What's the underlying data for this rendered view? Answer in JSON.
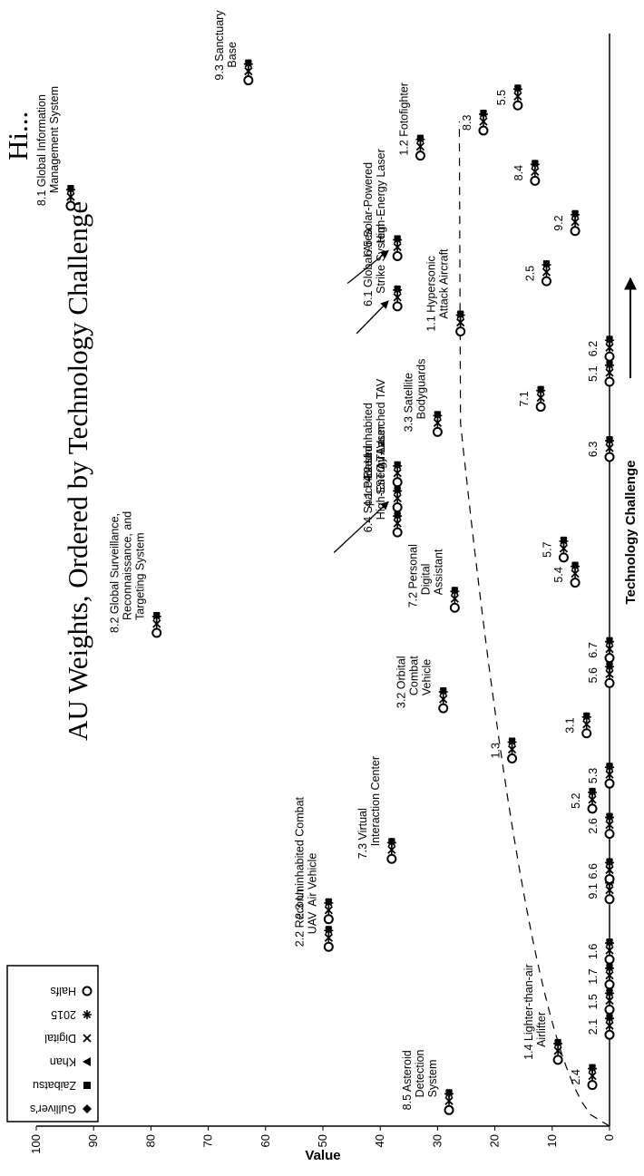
{
  "chart_data": {
    "type": "scatter",
    "title": "AU Weights, Ordered by Technology Challenge",
    "title_top_fragment": "Hi...",
    "ylabel": "Value",
    "xlabel": "Technology Challenge",
    "ylim": [
      0,
      100
    ],
    "y_ticks": [
      "100",
      "90",
      "80",
      "70",
      "60",
      "50",
      "40",
      "30",
      "20",
      "10",
      "0"
    ],
    "legend_position": "top-left",
    "legend": [
      {
        "name": "Gulliver's",
        "marker": "diamond"
      },
      {
        "name": "Zaibatsu",
        "marker": "square"
      },
      {
        "name": "Khan",
        "marker": "triangle"
      },
      {
        "name": "Digital",
        "marker": "x"
      },
      {
        "name": "2015",
        "marker": "asterisk"
      },
      {
        "name": "Halfs",
        "marker": "circle"
      }
    ],
    "points": [
      {
        "label": "8.5 Asteroid Detection System",
        "x": 1,
        "y": 28,
        "lines": [
          "8.5  Asteroid",
          "Detection",
          "System"
        ]
      },
      {
        "label": "2.4",
        "x": 2,
        "y": 3,
        "lines": [
          "2.4"
        ]
      },
      {
        "label": "1.4 Lighter-than-air Airlifter",
        "x": 3,
        "y": 9,
        "lines": [
          "1.4  Lighter-than-air",
          "Airlifter"
        ]
      },
      {
        "label": "2.1",
        "x": 4,
        "y": 0,
        "lines": [
          "2.1"
        ]
      },
      {
        "label": "1.5",
        "x": 5,
        "y": 0,
        "lines": [
          "1.5"
        ]
      },
      {
        "label": "1.7",
        "x": 6,
        "y": 0,
        "lines": [
          "1.7"
        ]
      },
      {
        "label": "1.6",
        "x": 7,
        "y": 0,
        "lines": [
          "1.6"
        ]
      },
      {
        "label": "2.2 Reconn UAV",
        "x": 7.5,
        "y": 49,
        "lines": [
          "2.2  Reconn",
          "UAV"
        ]
      },
      {
        "label": "2.3 Uninhabited Combat Air Vehicle",
        "x": 8.6,
        "y": 49,
        "lines": [
          "2.3  Uninhabited Combat",
          "Air Vehicle"
        ]
      },
      {
        "label": "9.1",
        "x": 9.4,
        "y": 0,
        "lines": [
          "9.1"
        ]
      },
      {
        "label": "6.6",
        "x": 10.2,
        "y": 0,
        "lines": [
          "6.6"
        ]
      },
      {
        "label": "7.3 Virtual Interaction Center",
        "x": 11,
        "y": 38,
        "lines": [
          "7.3  Virtual",
          "Interaction Center"
        ]
      },
      {
        "label": "2.6",
        "x": 12,
        "y": 0,
        "lines": [
          "2.6"
        ]
      },
      {
        "label": "5.2",
        "x": 13,
        "y": 3,
        "lines": [
          "5.2"
        ]
      },
      {
        "label": "5.3",
        "x": 14,
        "y": 0,
        "lines": [
          "5.3"
        ]
      },
      {
        "label": "1.3",
        "x": 15,
        "y": 17,
        "lines": [
          "1.3"
        ]
      },
      {
        "label": "3.1",
        "x": 16,
        "y": 4,
        "lines": [
          "3.1"
        ]
      },
      {
        "label": "3.2 Orbital Combat Vehicle",
        "x": 17,
        "y": 29,
        "lines": [
          "3.2  Orbital",
          "Combat",
          "Vehicle"
        ]
      },
      {
        "label": "5.6",
        "x": 18,
        "y": 0,
        "lines": [
          "5.6"
        ]
      },
      {
        "label": "6.7",
        "x": 19,
        "y": 0,
        "lines": [
          "6.7"
        ]
      },
      {
        "label": "8.2 Global Surveillance, Reconnaissance, and Targeting System",
        "x": 20,
        "y": 79,
        "lines": [
          "8.2  Global Surveillance,",
          "Reconnaissance, and",
          "Targeting System"
        ]
      },
      {
        "label": "7.2 Personal Digital Assistant",
        "x": 21,
        "y": 27,
        "lines": [
          "7.2  Personal",
          "Digital",
          "Assistant"
        ]
      },
      {
        "label": "5.4",
        "x": 22,
        "y": 6,
        "lines": [
          "5.4"
        ]
      },
      {
        "label": "5.7",
        "x": 23,
        "y": 8,
        "lines": [
          "5.7"
        ]
      },
      {
        "label": "6.4 Space-Based High-Energy Laser",
        "x": 24,
        "y": 37,
        "lines": [
          "6.4  Space-Based",
          "High-Energy Laser"
        ]
      },
      {
        "label": "4.1 Piloted SSTO TAV",
        "x": 25,
        "y": 37,
        "lines": [
          "4.1  Piloted",
          "SSTO TAV"
        ]
      },
      {
        "label": "4.2 Uninhabited Air-Launched TAV",
        "x": 26,
        "y": 37,
        "lines": [
          "4.2  Uninhabited",
          "Air-Launched TAV"
        ]
      },
      {
        "label": "6.3",
        "x": 27,
        "y": 0,
        "lines": [
          "6.3"
        ]
      },
      {
        "label": "3.3 Satellite Bodyguards",
        "x": 28,
        "y": 30,
        "lines": [
          "3.3  Satellite",
          "Bodyguards"
        ]
      },
      {
        "label": "7.1",
        "x": 29,
        "y": 12,
        "lines": [
          "7.1"
        ]
      },
      {
        "label": "5.1",
        "x": 30,
        "y": 0,
        "lines": [
          "5.1"
        ]
      },
      {
        "label": "6.2",
        "x": 31,
        "y": 0,
        "lines": [
          "6.2"
        ]
      },
      {
        "label": "1.1 Hypersonic Attack Aircraft",
        "x": 32,
        "y": 26,
        "lines": [
          "1.1  Hypersonic",
          "Attack Aircraft"
        ]
      },
      {
        "label": "6.1 Global Area Strike System",
        "x": 33,
        "y": 37,
        "lines": [
          "6.1  Global Area",
          "Strike System"
        ]
      },
      {
        "label": "2.5",
        "x": 34,
        "y": 11,
        "lines": [
          "2.5"
        ]
      },
      {
        "label": "6.5 Solar-Powered High-Energy Laser",
        "x": 35,
        "y": 37,
        "lines": [
          "6.5  Solar-Powered",
          "High-Energy Laser"
        ]
      },
      {
        "label": "9.2",
        "x": 36,
        "y": 6,
        "lines": [
          "9.2"
        ]
      },
      {
        "label": "8.1 Global Information Management System",
        "x": 37,
        "y": 94,
        "lines": [
          "8.1  Global Information",
          "Management System"
        ]
      },
      {
        "label": "8.4",
        "x": 38,
        "y": 13,
        "lines": [
          "8.4"
        ]
      },
      {
        "label": "1.2 Fotofighter",
        "x": 39,
        "y": 33,
        "lines": [
          "1.2  Fotofighter"
        ]
      },
      {
        "label": "8.3",
        "x": 40,
        "y": 22,
        "lines": [
          "8.3"
        ]
      },
      {
        "label": "5.5",
        "x": 41,
        "y": 16,
        "lines": [
          "5.5"
        ]
      },
      {
        "label": "9.3 Sanctuary Base",
        "x": 42,
        "y": 63,
        "lines": [
          "9.3  Sanctuary",
          "Base"
        ]
      }
    ]
  }
}
